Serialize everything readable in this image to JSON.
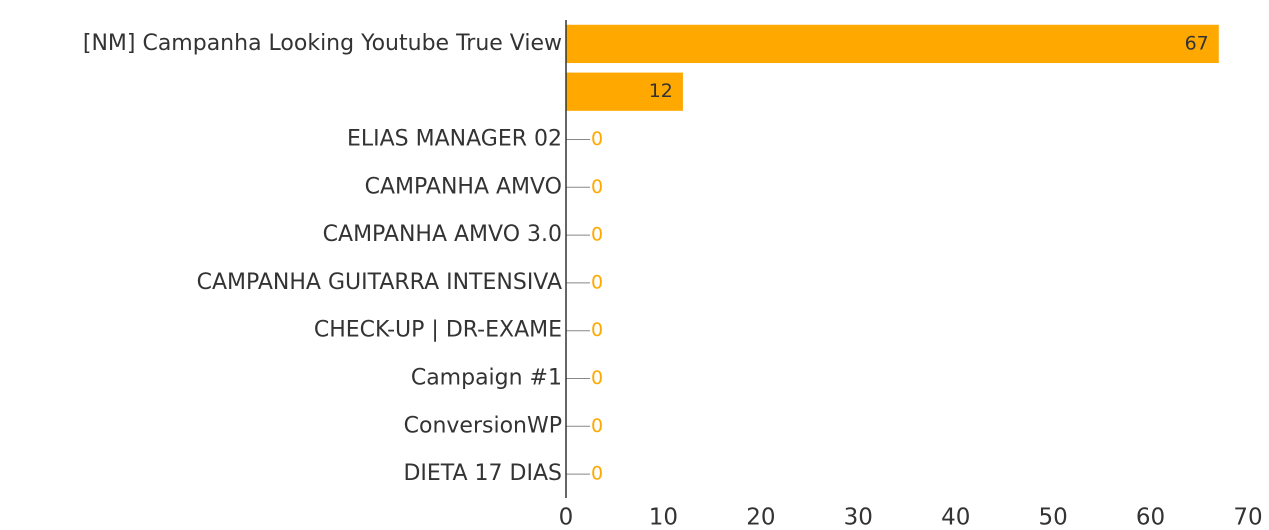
{
  "chart_data": {
    "type": "hbar",
    "categories": [
      "[NM] Campanha Looking Youtube True View",
      null,
      "ELIAS MANAGER 02",
      "CAMPANHA AMVO",
      "CAMPANHA AMVO 3.0",
      "CAMPANHA GUITARRA INTENSIVA",
      "CHECK-UP | DR-EXAME",
      "Campaign #1",
      "ConversionWP",
      "DIETA 17 DIAS"
    ],
    "values": [
      67,
      12,
      0,
      0,
      0,
      0,
      0,
      0,
      0,
      0
    ],
    "color": "#ffa800",
    "xlim": [
      0,
      70
    ],
    "xticks": [
      0,
      10,
      20,
      30,
      40,
      50,
      60,
      70
    ],
    "grid": false
  }
}
